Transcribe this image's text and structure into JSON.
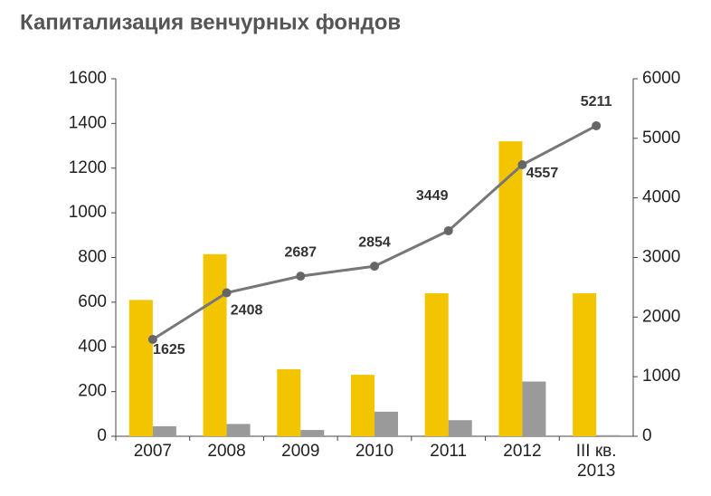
{
  "chart_data": {
    "type": "bar_line",
    "title": "Капитализация венчурных фондов",
    "categories": [
      "2007",
      "2008",
      "2009",
      "2010",
      "2011",
      "2012",
      "III кв. 2013"
    ],
    "series": [
      {
        "color": "#f2c500",
        "values": [
          610,
          815,
          300,
          275,
          640,
          1320,
          640
        ]
      },
      {
        "color": "#9a9a9a",
        "values": [
          45,
          55,
          28,
          110,
          72,
          245,
          5
        ]
      },
      {
        "color": "#777777",
        "axis": "y2",
        "values": [
          1625,
          2408,
          2687,
          2854,
          3449,
          4557,
          5211
        ]
      }
    ],
    "ylim": [
      0,
      1600
    ],
    "yticks": [
      0,
      200,
      400,
      600,
      800,
      1000,
      1200,
      1400,
      1600
    ],
    "y2lim": [
      0,
      6000
    ],
    "y2ticks": [
      0,
      1000,
      2000,
      3000,
      4000,
      5000,
      6000
    ],
    "grid": false
  }
}
